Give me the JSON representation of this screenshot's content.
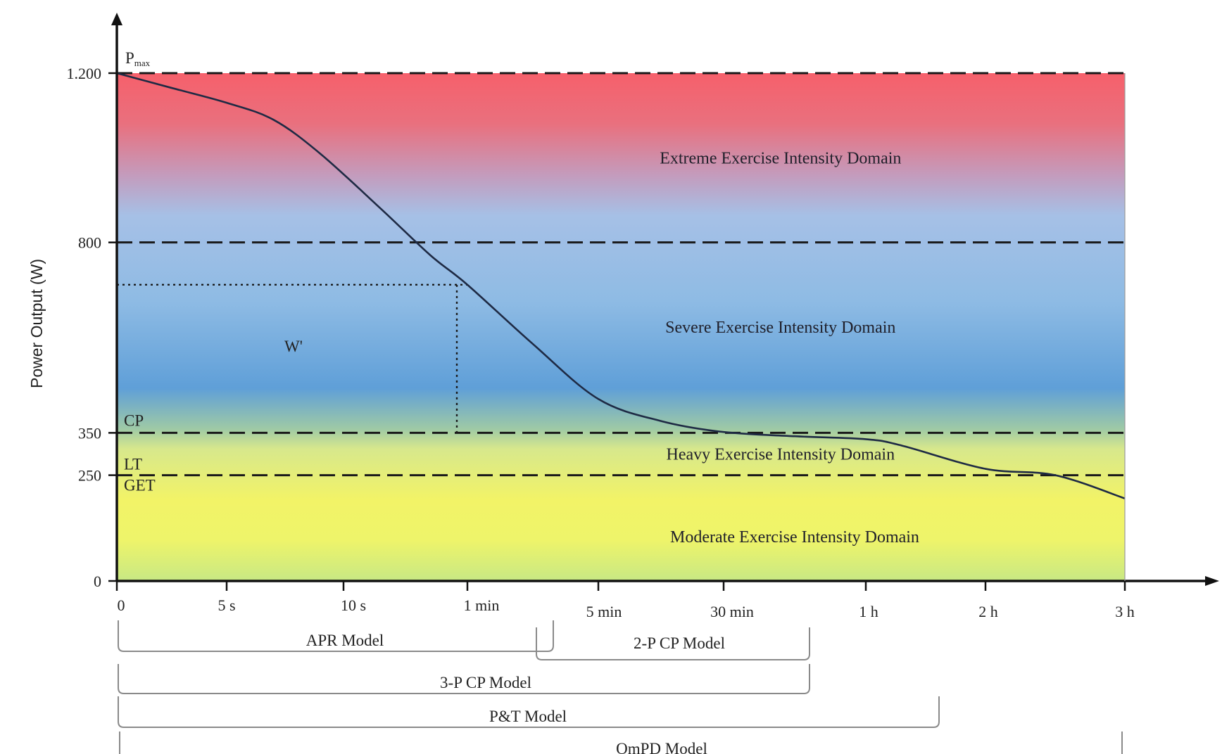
{
  "chart_data": {
    "type": "line",
    "title": "",
    "ylabel": "Power Output (W)",
    "xlabel": "",
    "ylim": [
      0,
      1200
    ],
    "grid": false,
    "legend": "none",
    "y_ticks": [
      {
        "value": 0,
        "label": "0"
      },
      {
        "value": 250,
        "label": "250"
      },
      {
        "value": 350,
        "label": "350"
      },
      {
        "value": 800,
        "label": "800"
      },
      {
        "value": 1200,
        "label": "1.200"
      }
    ],
    "x_ticks": [
      {
        "index": 0,
        "label": "0"
      },
      {
        "index": 1,
        "label": "5 s"
      },
      {
        "index": 2,
        "label": "10 s"
      },
      {
        "index": 3,
        "label": "1 min"
      },
      {
        "index": 4,
        "label": "5 min"
      },
      {
        "index": 5,
        "label": "30 min"
      },
      {
        "index": 6,
        "label": "1 h"
      },
      {
        "index": 7,
        "label": "2 h"
      },
      {
        "index": 8,
        "label": "3 h"
      }
    ],
    "curve": {
      "x_index": [
        0,
        0.5,
        1,
        1.4,
        1.8,
        2.3,
        2.7,
        3.0,
        3.5,
        4.0,
        4.5,
        5.0,
        5.5,
        6.0,
        6.3,
        7.0,
        7.5,
        8.0
      ],
      "y": [
        1200,
        1165,
        1130,
        1090,
        1010,
        880,
        770,
        700,
        560,
        430,
        378,
        352,
        342,
        335,
        320,
        265,
        250,
        195
      ]
    },
    "thresholds": [
      {
        "name": "Pmax",
        "label_main": "P",
        "label_sub": "max",
        "value": 1200
      },
      {
        "name": "CP",
        "label_main": "CP",
        "value": 350
      },
      {
        "name": "LT/GET",
        "label_main": "LT",
        "label_second": "GET",
        "value": 250
      },
      {
        "name": "upper",
        "value": 800
      }
    ],
    "w_prime": {
      "label": "W'",
      "x_index": 3.0,
      "y": 700
    },
    "domains": [
      {
        "name": "Extreme Exercise Intensity Domain",
        "y": 1000,
        "x_index": 5.4
      },
      {
        "name": "Severe Exercise Intensity Domain",
        "y": 600,
        "x_index": 5.4
      },
      {
        "name": "Heavy Exercise Intensity Domain",
        "y": 300,
        "x_index": 5.4
      },
      {
        "name": "Moderate Exercise Intensity Domain",
        "y": 105,
        "x_index": 5.5
      }
    ],
    "colors": {
      "extreme": "#f6606b",
      "severe": "#7fb2e2",
      "heavy": "#e7f07a",
      "moderate": "#f4f25d",
      "curve": "#1e2a44"
    },
    "models": [
      {
        "name": "APR Model",
        "from": "0",
        "to": "~2 min"
      },
      {
        "name": "2-P CP Model",
        "from": "~2 min",
        "to": "~45 min"
      },
      {
        "name": "3-P CP Model",
        "from": "0",
        "to": "~45 min"
      },
      {
        "name": "P&T Model",
        "from": "0",
        "to": "~1.5 h"
      },
      {
        "name": "OmPD Model",
        "from": "0",
        "to": "3 h"
      }
    ]
  }
}
